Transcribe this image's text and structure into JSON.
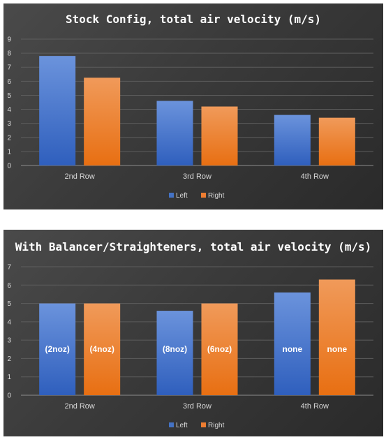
{
  "chart_data": [
    {
      "type": "bar",
      "title": "Stock Config, total air velocity (m/s)",
      "categories": [
        "2nd Row",
        "3rd Row",
        "4th Row"
      ],
      "ylim": [
        0,
        9
      ],
      "yticks": [
        0,
        1,
        2,
        3,
        4,
        5,
        6,
        7,
        8,
        9
      ],
      "grid": true,
      "legend_position": "bottom",
      "series": [
        {
          "name": "Left",
          "color": "#4472C4",
          "values": [
            7.8,
            4.6,
            3.6
          ]
        },
        {
          "name": "Right",
          "color": "#ED7D31",
          "values": [
            6.25,
            4.2,
            3.4
          ]
        }
      ]
    },
    {
      "type": "bar",
      "title": "With Balancer/Straighteners, total air velocity (m/s)",
      "categories": [
        "2nd Row",
        "3rd Row",
        "4th Row"
      ],
      "ylim": [
        0,
        7
      ],
      "yticks": [
        0,
        1,
        2,
        3,
        4,
        5,
        6,
        7
      ],
      "grid": true,
      "legend_position": "bottom",
      "series": [
        {
          "name": "Left",
          "color": "#4472C4",
          "values": [
            5.0,
            4.6,
            5.6
          ],
          "labels": [
            "(2noz)",
            "(8noz)",
            "none"
          ]
        },
        {
          "name": "Right",
          "color": "#ED7D31",
          "values": [
            5.0,
            5.0,
            6.3
          ],
          "labels": [
            "(4noz)",
            "(6noz)",
            "none"
          ]
        }
      ]
    }
  ]
}
